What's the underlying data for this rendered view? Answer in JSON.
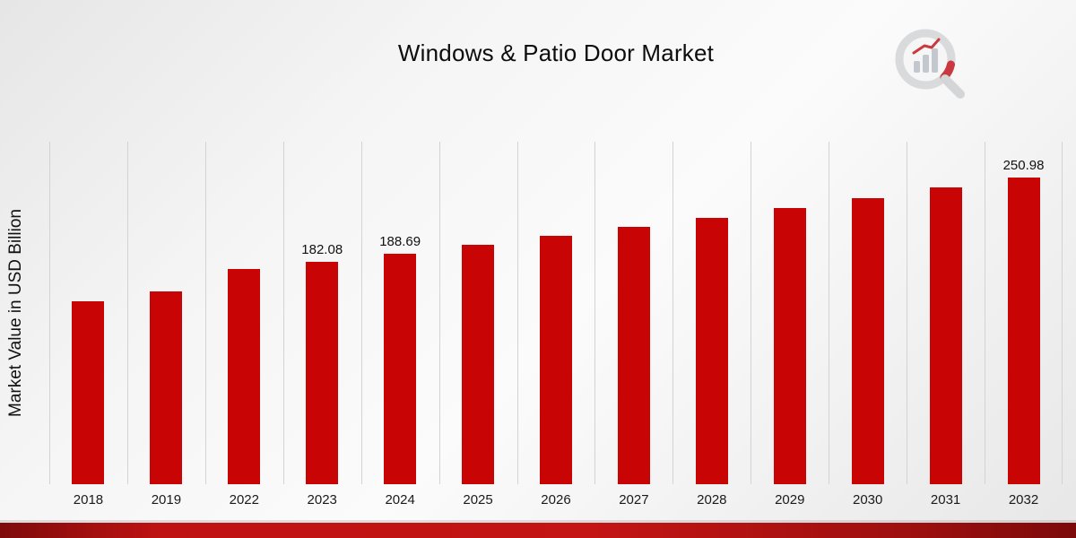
{
  "chart_data": {
    "type": "bar",
    "title": "Windows & Patio Door Market",
    "xlabel": "",
    "ylabel": "Market Value in USD Billion",
    "categories": [
      "2018",
      "2019",
      "2022",
      "2023",
      "2024",
      "2025",
      "2026",
      "2027",
      "2028",
      "2029",
      "2030",
      "2031",
      "2032"
    ],
    "values": [
      149.9,
      157.6,
      175.7,
      182.08,
      188.69,
      195.6,
      202.7,
      210.1,
      217.7,
      225.6,
      233.8,
      242.3,
      250.98
    ],
    "point_labels": {
      "2023": "182.08",
      "2024": "188.69",
      "2032": "250.98"
    },
    "ylim": [
      0,
      280
    ],
    "grid": "vertical",
    "legend": "none",
    "bar_color": "#c80404"
  },
  "colors": {
    "bar": "#c80404",
    "footer_stripe": "#b01010",
    "gridline": "#d3d3d3",
    "title_text": "#0d0d0d"
  },
  "branding": {
    "logo_icon": "magnifier-bar-chart-icon"
  }
}
